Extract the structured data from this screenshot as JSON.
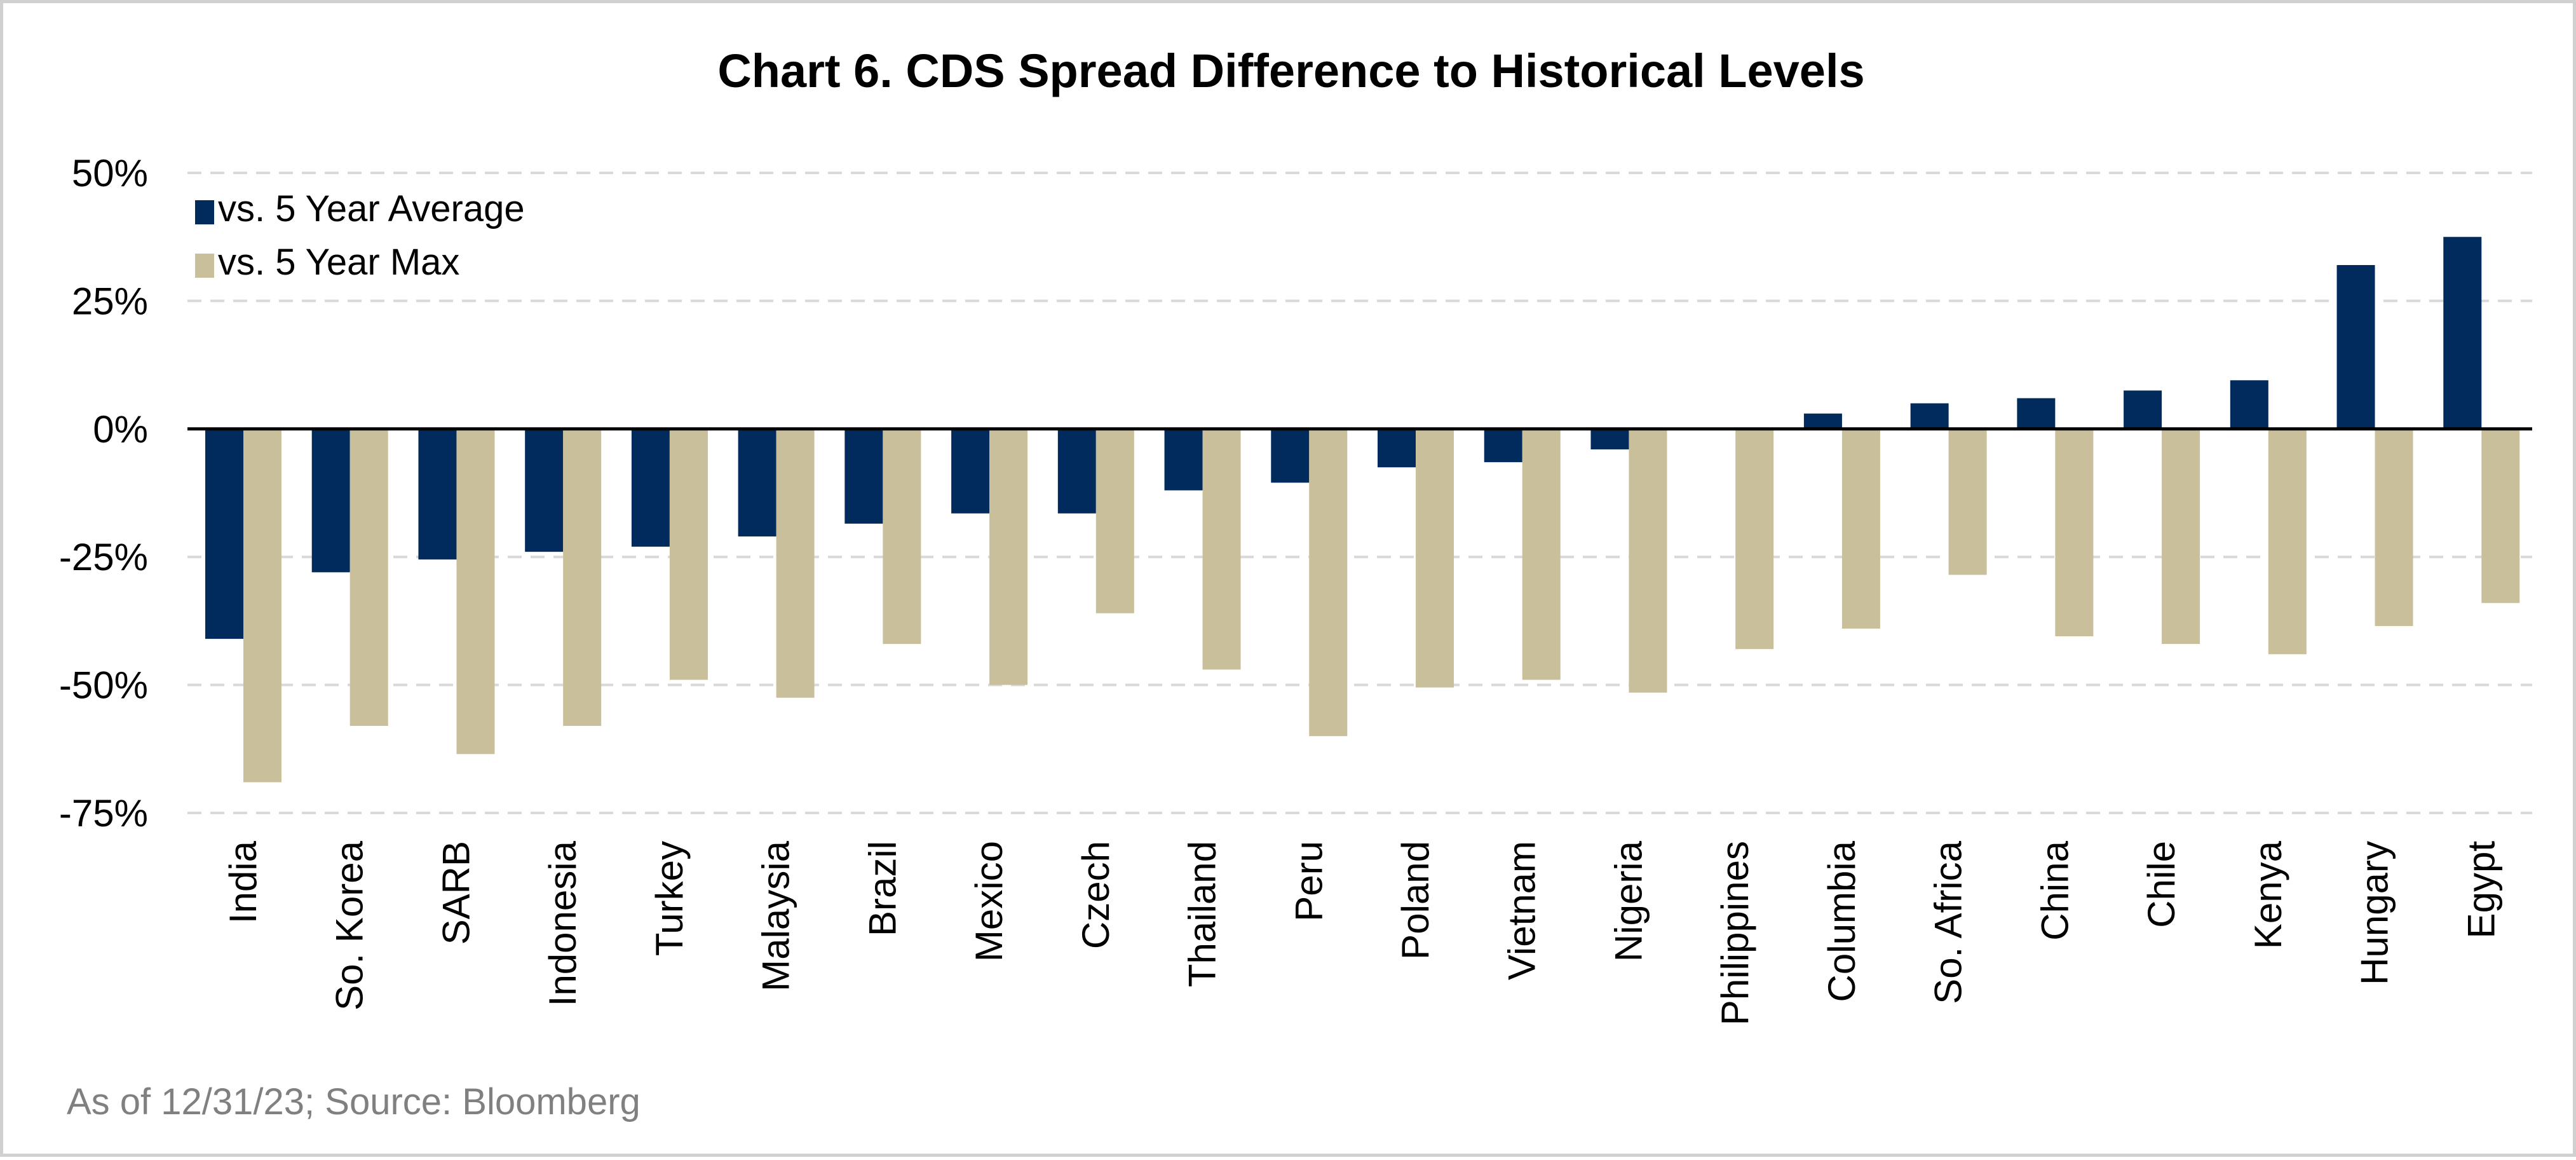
{
  "chart_data": {
    "type": "bar",
    "title": "Chart 6. CDS Spread Difference to Historical Levels",
    "source_note": "As of 12/31/23; Source:  Bloomberg",
    "categories": [
      "India",
      "So. Korea",
      "SARB",
      "Indonesia",
      "Turkey",
      "Malaysia",
      "Brazil",
      "Mexico",
      "Czech",
      "Thailand",
      "Peru",
      "Poland",
      "Vietnam",
      "Nigeria",
      "Philippines",
      "Columbia",
      "So. Africa",
      "China",
      "Chile",
      "Kenya",
      "Hungary",
      "Egypt"
    ],
    "series": [
      {
        "name": "vs. 5 Year Average",
        "color": "#002B5C",
        "values": [
          -41,
          -28,
          -25.5,
          -24,
          -23,
          -21,
          -18.5,
          -16.5,
          -16.5,
          -12,
          -10.5,
          -7.5,
          -6.5,
          -4,
          0,
          3,
          5,
          6,
          7.5,
          9.5,
          32,
          37.5
        ]
      },
      {
        "name": "vs. 5 Year Max",
        "color": "#C9BF9B",
        "values": [
          -69,
          -58,
          -63.5,
          -58,
          -49,
          -52.5,
          -42,
          -50,
          -36,
          -47,
          -60,
          -50.5,
          -49,
          -51.5,
          -43,
          -39,
          -28.5,
          -40.5,
          -42,
          -44,
          -38.5,
          -34
        ]
      }
    ],
    "ylim": [
      -75,
      50
    ],
    "yticks": [
      50,
      25,
      0,
      -25,
      -50,
      -75
    ],
    "ytick_labels": [
      "50%",
      "25%",
      "0%",
      "-25%",
      "-50%",
      "-75%"
    ],
    "xlabel": "",
    "ylabel": "",
    "grid": "horizontal dashed",
    "legend_position": "top-left"
  }
}
